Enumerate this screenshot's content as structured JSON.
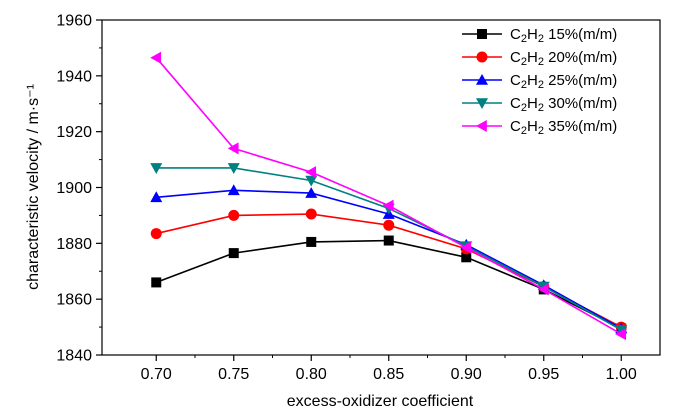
{
  "chart_data": {
    "type": "line",
    "xlabel": "excess-oxidizer coefficient",
    "ylabel": "characteristic velocity / m·s⁻¹",
    "x": [
      0.7,
      0.75,
      0.8,
      0.85,
      0.9,
      0.95,
      1.0
    ],
    "x_tick_labels": [
      "0.70",
      "0.75",
      "0.80",
      "0.85",
      "0.90",
      "0.95",
      "1.00"
    ],
    "xlim": [
      0.665,
      1.025
    ],
    "ylim": [
      1840,
      1960
    ],
    "y_ticks": [
      1840,
      1860,
      1880,
      1900,
      1920,
      1940,
      1960
    ],
    "grid": false,
    "legend_position": "top-right",
    "series": [
      {
        "legend": {
          "base": "C",
          "sub1": "2",
          "mid": "H",
          "sub2": "2",
          "tail": " 15%(m/m)"
        },
        "color": "#000000",
        "marker": "square",
        "values": [
          1866,
          1876.5,
          1880.5,
          1881,
          1875,
          1863.5,
          1849.5
        ]
      },
      {
        "legend": {
          "base": "C",
          "sub1": "2",
          "mid": "H",
          "sub2": "2",
          "tail": " 20%(m/m)"
        },
        "color": "#ff0000",
        "marker": "circle",
        "values": [
          1883.5,
          1890,
          1890.5,
          1886.5,
          1878,
          1864.5,
          1850
        ]
      },
      {
        "legend": {
          "base": "C",
          "sub1": "2",
          "mid": "H",
          "sub2": "2",
          "tail": " 25%(m/m)"
        },
        "color": "#0000ff",
        "marker": "triangle-up",
        "values": [
          1896.5,
          1899,
          1898,
          1890.5,
          1879.5,
          1865,
          1849.5
        ]
      },
      {
        "legend": {
          "base": "C",
          "sub1": "2",
          "mid": "H",
          "sub2": "2",
          "tail": " 30%(m/m)"
        },
        "color": "#008080",
        "marker": "triangle-down",
        "values": [
          1907,
          1907,
          1902.5,
          1892.5,
          1879,
          1864.5,
          1849
        ]
      },
      {
        "legend": {
          "base": "C",
          "sub1": "2",
          "mid": "H",
          "sub2": "2",
          "tail": " 35%(m/m)"
        },
        "color": "#ff00ff",
        "marker": "triangle-left",
        "values": [
          1946.5,
          1914,
          1905.5,
          1893.5,
          1878.5,
          1863.5,
          1847.5
        ]
      }
    ]
  }
}
